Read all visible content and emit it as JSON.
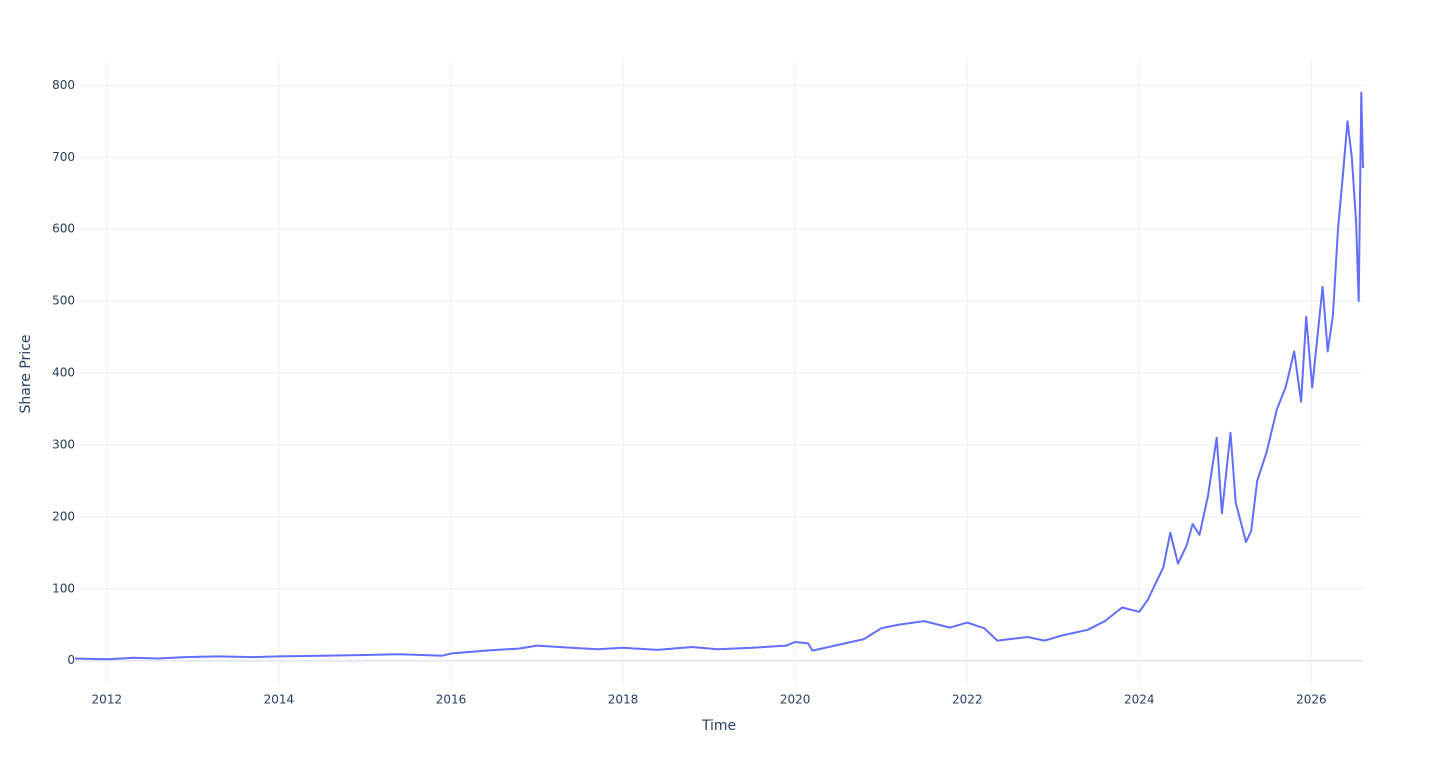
{
  "chart_data": {
    "type": "line",
    "x_label": "Time",
    "y_label": "Share Price",
    "x": [
      2011.63,
      2012.0,
      2012.3,
      2012.6,
      2012.9,
      2013.3,
      2013.7,
      2014.0,
      2014.5,
      2015.0,
      2015.4,
      2015.9,
      2016.0,
      2016.4,
      2016.8,
      2017.0,
      2017.4,
      2017.7,
      2018.0,
      2018.4,
      2018.8,
      2019.1,
      2019.5,
      2019.9,
      2020.0,
      2020.15,
      2020.2,
      2020.5,
      2020.8,
      2021.0,
      2021.2,
      2021.5,
      2021.8,
      2022.0,
      2022.2,
      2022.35,
      2022.7,
      2022.9,
      2023.1,
      2023.4,
      2023.6,
      2023.8,
      2024.0,
      2024.1,
      2024.2,
      2024.28,
      2024.36,
      2024.45,
      2024.55,
      2024.62,
      2024.7,
      2024.8,
      2024.9,
      2024.96,
      2025.06,
      2025.12,
      2025.24,
      2025.3,
      2025.37,
      2025.48,
      2025.6,
      2025.7,
      2025.8,
      2025.88,
      2025.94,
      2026.01,
      2026.13,
      2026.19,
      2026.25,
      2026.31,
      2026.37,
      2026.42,
      2026.47,
      2026.52,
      2026.55,
      2026.58,
      2026.6
    ],
    "series": [
      {
        "name": "Share Price",
        "color": "#636efa",
        "values": [
          3,
          2,
          4,
          3,
          5,
          6,
          5,
          6,
          7,
          8,
          9,
          7,
          10,
          14,
          17,
          21,
          18,
          16,
          18,
          15,
          19,
          16,
          18,
          21,
          26,
          24,
          14,
          22,
          30,
          45,
          50,
          55,
          46,
          53,
          45,
          28,
          33,
          28,
          35,
          43,
          55,
          74,
          68,
          85,
          110,
          130,
          178,
          135,
          160,
          190,
          175,
          230,
          310,
          205,
          317,
          220,
          165,
          180,
          250,
          290,
          350,
          380,
          430,
          360,
          478,
          380,
          520,
          430,
          480,
          600,
          680,
          750,
          700,
          610,
          500,
          790,
          685
        ]
      }
    ],
    "xlim": [
      2011.63,
      2026.6
    ],
    "ylim": [
      -31,
      838
    ],
    "xticks": [
      2012,
      2014,
      2016,
      2018,
      2020,
      2022,
      2024,
      2026
    ],
    "yticks": [
      0,
      100,
      200,
      300,
      400,
      500,
      600,
      700,
      800
    ],
    "grid": true
  }
}
